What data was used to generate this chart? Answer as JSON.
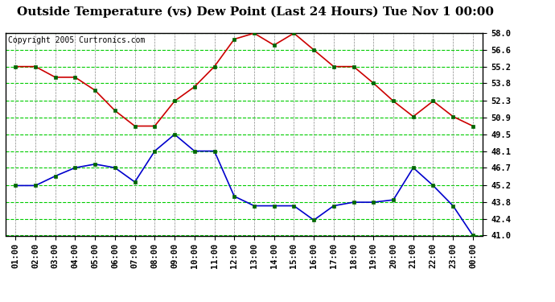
{
  "title": "Outside Temperature (vs) Dew Point (Last 24 Hours) Tue Nov 1 00:00",
  "copyright": "Copyright 2005 Curtronics.com",
  "x_labels": [
    "01:00",
    "02:00",
    "03:00",
    "04:00",
    "05:00",
    "06:00",
    "07:00",
    "08:00",
    "09:00",
    "10:00",
    "11:00",
    "12:00",
    "13:00",
    "14:00",
    "15:00",
    "16:00",
    "17:00",
    "18:00",
    "19:00",
    "20:00",
    "21:00",
    "22:00",
    "23:00",
    "00:00"
  ],
  "temp_red": [
    55.2,
    55.2,
    54.3,
    54.3,
    53.2,
    51.5,
    50.2,
    50.2,
    52.3,
    53.5,
    55.2,
    57.5,
    58.0,
    57.0,
    58.0,
    56.6,
    55.2,
    55.2,
    53.8,
    52.3,
    51.0,
    52.3,
    51.0,
    50.2
  ],
  "dew_blue": [
    45.2,
    45.2,
    46.0,
    46.7,
    47.0,
    46.7,
    45.5,
    48.1,
    49.5,
    48.1,
    48.1,
    44.3,
    43.5,
    43.5,
    43.5,
    42.3,
    43.5,
    43.8,
    43.8,
    44.0,
    46.7,
    45.2,
    43.5,
    41.0
  ],
  "ylim_min": 41.0,
  "ylim_max": 58.0,
  "yticks": [
    41.0,
    42.4,
    43.8,
    45.2,
    46.7,
    48.1,
    49.5,
    50.9,
    52.3,
    53.8,
    55.2,
    56.6,
    58.0
  ],
  "plot_bg": "#ffffff",
  "title_fontsize": 11,
  "copyright_fontsize": 7,
  "tick_fontsize": 7.5,
  "line_color_red": "#cc0000",
  "line_color_blue": "#0000cc",
  "marker_color": "#006600",
  "grid_h_color": "#00cc00",
  "grid_v_color": "#888888",
  "border_color": "#000000"
}
